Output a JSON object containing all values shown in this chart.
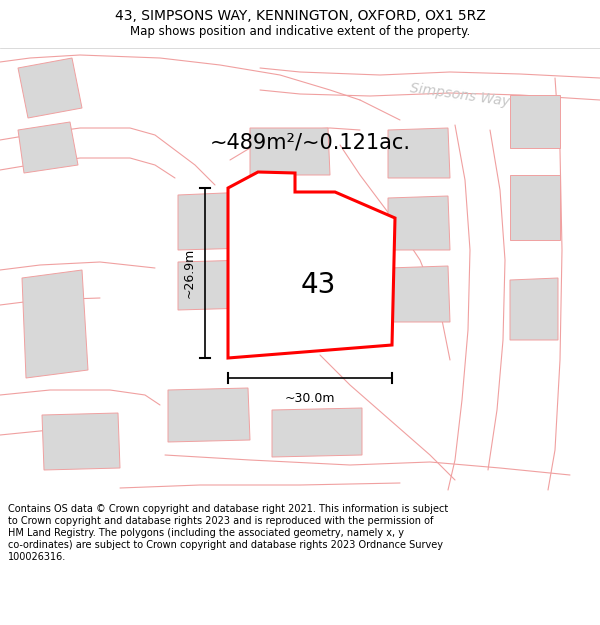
{
  "title_line1": "43, SIMPSONS WAY, KENNINGTON, OXFORD, OX1 5RZ",
  "title_line2": "Map shows position and indicative extent of the property.",
  "area_label": "~489m²/~0.121ac.",
  "number_label": "43",
  "street_label": "Simpsons Way",
  "dim_height": "~26.9m",
  "dim_width": "~30.0m",
  "bg_color": "#ffffff",
  "highlight_color": "#ff0000",
  "outline_color": "#f0a0a0",
  "building_fill": "#d8d8d8",
  "title_fontsize": 10,
  "subtitle_fontsize": 8.5,
  "footer_fontsize": 7,
  "footer_lines": [
    "Contains OS data © Crown copyright and database right 2021. This information is subject",
    "to Crown copyright and database rights 2023 and is reproduced with the permission of",
    "HM Land Registry. The polygons (including the associated geometry, namely x, y",
    "co-ordinates) are subject to Crown copyright and database rights 2023 Ordnance Survey",
    "100026316."
  ]
}
